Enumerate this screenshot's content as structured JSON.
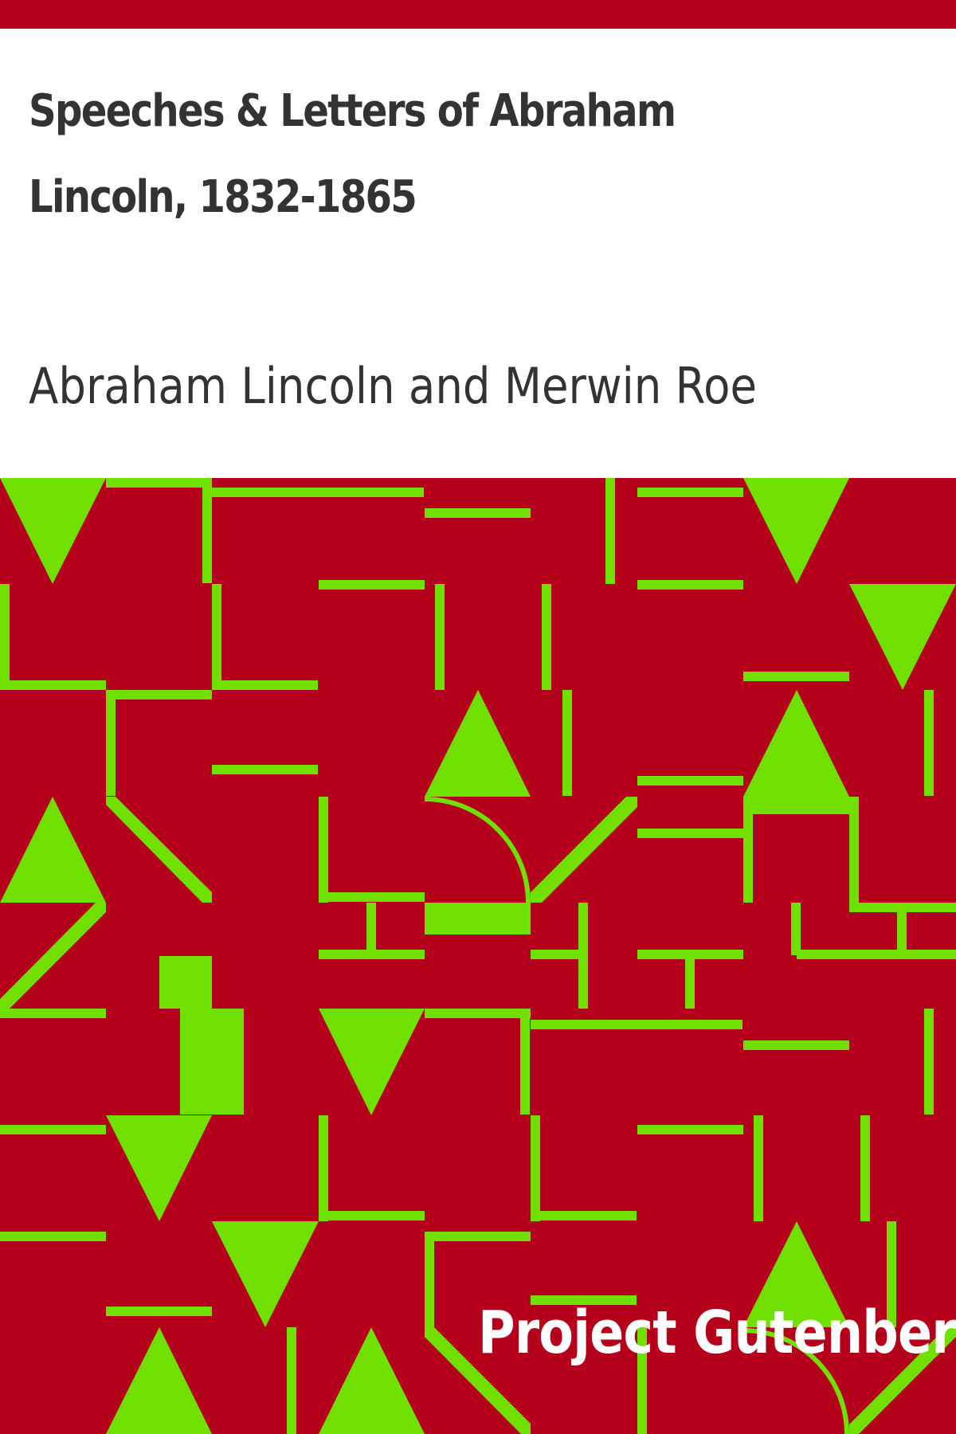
{
  "book": {
    "title": "Speeches & Letters of Abraham Lincoln, 1832-1865",
    "author": "Abraham Lincoln and Merwin Roe",
    "publisher": "Project Gutenberg"
  },
  "colors": {
    "background": "#ffffff",
    "band": "#b5001c",
    "pattern_background": "#b5001c",
    "pattern_foreground": "#70e000",
    "title_text": "#333333",
    "publisher_text": "#ffffff"
  }
}
